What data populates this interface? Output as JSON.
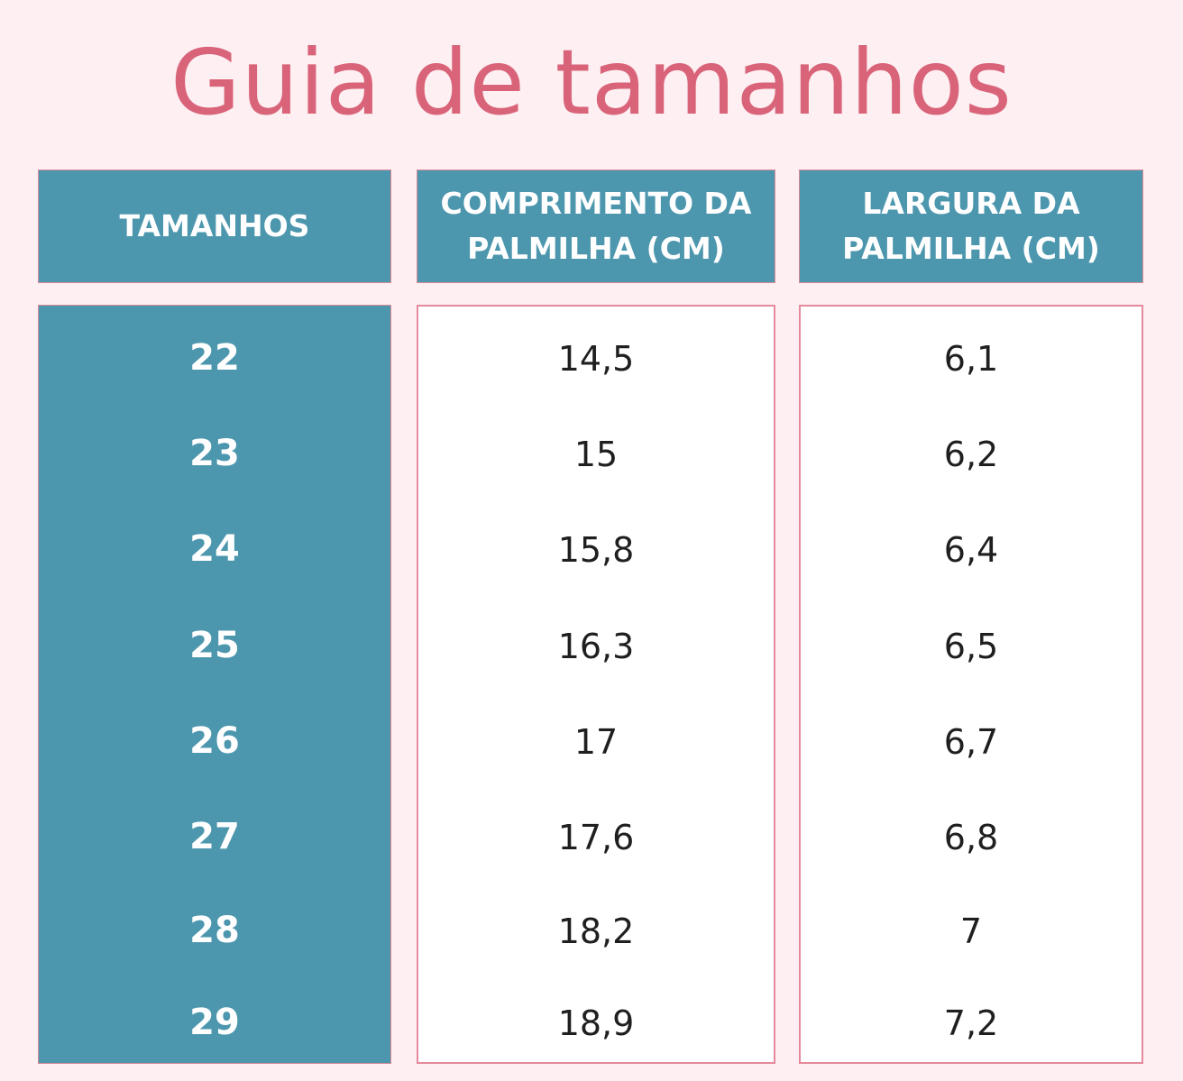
{
  "title": "Guia de tamanhos",
  "colors": {
    "background": "#fdeff2",
    "title": "#d96479",
    "header_fill": "#4d97ae",
    "border": "#e58a9c"
  },
  "table": {
    "headers": [
      "TAMANHOS",
      "COMPRIMENTO DA\nPALMILHA (CM)",
      "LARGURA DA\nPALMILHA (CM)"
    ],
    "rows": [
      [
        "22",
        "14,5",
        "6,1"
      ],
      [
        "23",
        "15",
        "6,2"
      ],
      [
        "24",
        "15,8",
        "6,4"
      ],
      [
        "25",
        "16,3",
        "6,5"
      ],
      [
        "26",
        "17",
        "6,7"
      ],
      [
        "27",
        "17,6",
        "6,8"
      ],
      [
        "28",
        "18,2",
        "7"
      ],
      [
        "29",
        "18,9",
        "7,2"
      ]
    ]
  }
}
